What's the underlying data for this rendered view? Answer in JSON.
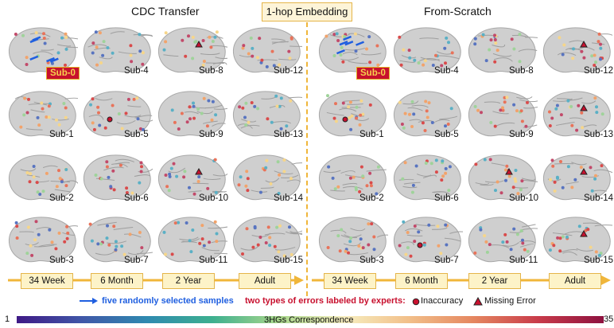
{
  "titles": {
    "left": "CDC Transfer",
    "center": "1-hop Embedding",
    "right": "From-Scratch"
  },
  "subjects": [
    "Sub-0",
    "Sub-4",
    "Sub-8",
    "Sub-12",
    "Sub-1",
    "Sub-5",
    "Sub-9",
    "Sub-13",
    "Sub-2",
    "Sub-6",
    "Sub-10",
    "Sub-14",
    "Sub-3",
    "Sub-7",
    "Sub-11",
    "Sub-15"
  ],
  "timeline": [
    "34 Week",
    "6 Month",
    "2 Year",
    "Adult"
  ],
  "legend": {
    "samples": "five randomly selected samples",
    "errors_title": "two types of errors labeled by experts:",
    "inaccuracy": "Inaccuracy",
    "missing": "Missing Error"
  },
  "colorbar": {
    "min": "1",
    "max": "35",
    "label": "3HGs Correspondence"
  },
  "colors": {
    "accent": "#f0b63a",
    "error": "#c8102e",
    "samples": "#1f5fe0"
  }
}
